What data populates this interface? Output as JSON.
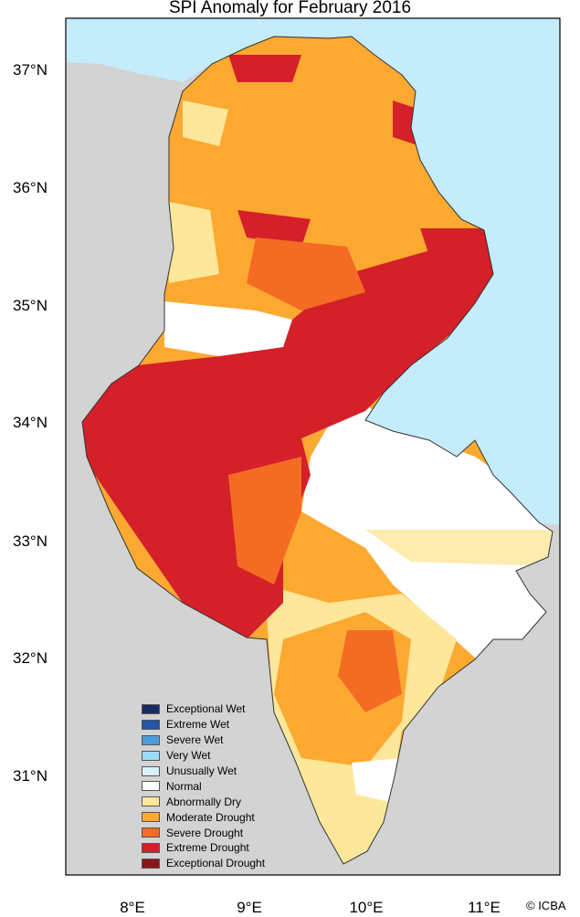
{
  "title": "SPI Anomaly for February 2016",
  "y_axis_labels": [
    "37°N",
    "36°N",
    "35°N",
    "34°N",
    "33°N",
    "32°N",
    "31°N"
  ],
  "x_axis_labels": [
    "8°E",
    "9°E",
    "10°E",
    "11°E"
  ],
  "credit": "© ICBA",
  "colors": {
    "sea": "#c4ecfb",
    "land": "#d3d3d3"
  },
  "legend": [
    {
      "label": "Exceptional Wet",
      "color": "#1a2a63"
    },
    {
      "label": "Extreme Wet",
      "color": "#2156a8"
    },
    {
      "label": "Severe Wet",
      "color": "#4d9dd8"
    },
    {
      "label": "Very Wet",
      "color": "#9ddcf7"
    },
    {
      "label": "Unusually Wet",
      "color": "#d9f1fa"
    },
    {
      "label": "Normal",
      "color": "#ffffff"
    },
    {
      "label": "Abnormally Dry",
      "color": "#fde79a"
    },
    {
      "label": "Moderate Drought",
      "color": "#fca931"
    },
    {
      "label": "Severe Drought",
      "color": "#f46c23"
    },
    {
      "label": "Extreme Drought",
      "color": "#d42029"
    },
    {
      "label": "Exceptional Drought",
      "color": "#8b1518"
    }
  ]
}
